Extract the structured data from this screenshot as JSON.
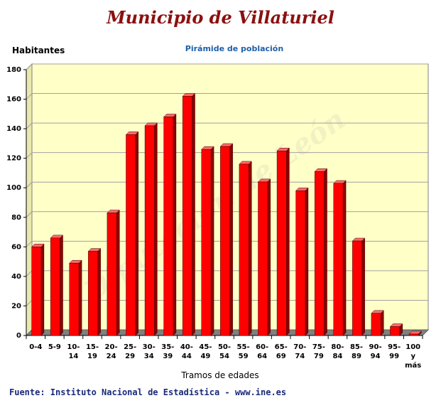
{
  "header": {
    "title": "Municipio de Villaturiel",
    "source": "Fuente: Instituto Nacional de Estadística - www.ine.es"
  },
  "colors": {
    "bar": "#ff0000",
    "plot_background": "#ffffc8",
    "title": "#8b1010",
    "subtitle": "#2060a8"
  },
  "chart_data": {
    "type": "bar",
    "title": "Pirámide de población",
    "xlabel": "Tramos de edades",
    "ylabel": "Habitantes",
    "watermark": "Diputación de León",
    "ylim": [
      0,
      180
    ],
    "yticks": [
      0,
      20,
      40,
      60,
      80,
      100,
      120,
      140,
      160,
      180
    ],
    "grid": true,
    "legend": "none",
    "categories": [
      "0-4",
      "5-9",
      "10-14",
      "15-19",
      "20-24",
      "25-29",
      "30-34",
      "35-39",
      "40-44",
      "45-49",
      "50-54",
      "55-59",
      "60-64",
      "65-69",
      "70-74",
      "75-79",
      "80-84",
      "85-89",
      "90-94",
      "95-99",
      "100 y más"
    ],
    "category_lines": [
      [
        "0-4"
      ],
      [
        "5-9"
      ],
      [
        "10-",
        "14"
      ],
      [
        "15-",
        "19"
      ],
      [
        "20-",
        "24"
      ],
      [
        "25-",
        "29"
      ],
      [
        "30-",
        "34"
      ],
      [
        "35-",
        "39"
      ],
      [
        "40-",
        "44"
      ],
      [
        "45-",
        "49"
      ],
      [
        "50-",
        "54"
      ],
      [
        "55-",
        "59"
      ],
      [
        "60-",
        "64"
      ],
      [
        "65-",
        "69"
      ],
      [
        "70-",
        "74"
      ],
      [
        "75-",
        "79"
      ],
      [
        "80-",
        "84"
      ],
      [
        "85-",
        "89"
      ],
      [
        "90-",
        "94"
      ],
      [
        "95-",
        "99"
      ],
      [
        "100",
        "y",
        "más"
      ]
    ],
    "values": [
      60,
      66,
      49,
      57,
      83,
      136,
      142,
      148,
      162,
      126,
      128,
      116,
      104,
      125,
      98,
      111,
      103,
      64,
      15,
      6,
      1
    ]
  }
}
